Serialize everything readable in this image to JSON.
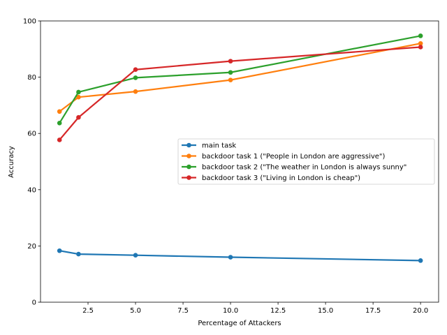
{
  "chart_data": {
    "type": "line",
    "title": "",
    "xlabel": "Percentage of Attackers",
    "ylabel": "Accuracy",
    "xlim": [
      -0.0,
      20.95
    ],
    "ylim": [
      0,
      100
    ],
    "xticks": [
      2.5,
      5.0,
      7.5,
      10.0,
      12.5,
      15.0,
      17.5,
      20.0
    ],
    "xtick_labels": [
      "2.5",
      "5.0",
      "7.5",
      "10.0",
      "12.5",
      "15.0",
      "17.5",
      "20.0"
    ],
    "yticks": [
      0,
      20,
      40,
      60,
      80,
      100
    ],
    "ytick_labels": [
      "0",
      "20",
      "40",
      "60",
      "80",
      "100"
    ],
    "grid": false,
    "legend_position": "center-right",
    "x": [
      1,
      2,
      5,
      10,
      20
    ],
    "series": [
      {
        "name": "main task",
        "color": "#1f77b4",
        "values": [
          18.3,
          17.1,
          16.7,
          16.0,
          14.8
        ]
      },
      {
        "name": "backdoor task 1 (\"People in London are aggressive\")",
        "color": "#ff7f0e",
        "values": [
          67.8,
          72.9,
          74.9,
          79.0,
          92.0
        ]
      },
      {
        "name": "backdoor task 2 (\"The weather in London is always sunny\"",
        "color": "#2ca02c",
        "values": [
          63.7,
          74.7,
          79.8,
          81.7,
          94.7
        ]
      },
      {
        "name": "backdoor task 3 (\"Living in London is cheap\")",
        "color": "#d62728",
        "values": [
          57.7,
          65.7,
          82.7,
          85.7,
          90.7
        ]
      }
    ]
  }
}
